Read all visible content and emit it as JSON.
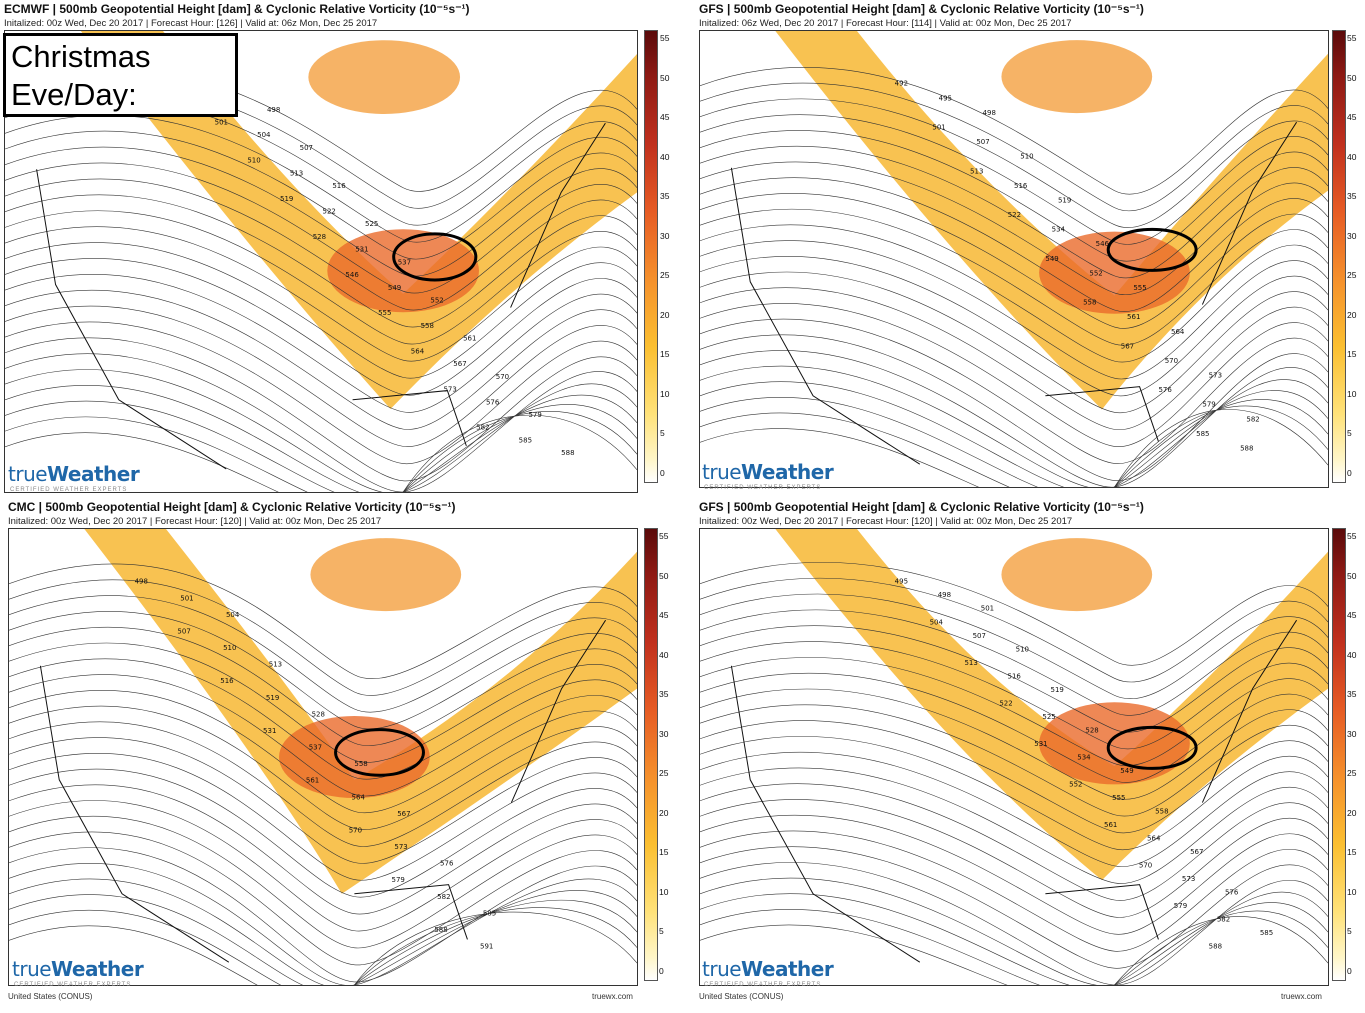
{
  "overlay": {
    "line1": "Christmas",
    "line2": "Eve/Day:"
  },
  "colorbar": {
    "ticks": [
      "55",
      "50",
      "45",
      "40",
      "35",
      "30",
      "25",
      "20",
      "15",
      "10",
      "5",
      "0"
    ]
  },
  "brand": {
    "logo_true": "true",
    "logo_weather": "Weather",
    "logo_tag": "CERTIFIED WEATHER EXPERTS",
    "site": "truewx.com",
    "region": "United States (CONUS)"
  },
  "panels": [
    {
      "title": "ECMWF | 500mb Geopotential Height [dam] & Cyclonic Relative Vorticity (10⁻⁵s⁻¹)",
      "subtitle": "Initalized: 00z Wed, Dec 20 2017 | Forecast Hour: [126] | Valid at: 06z Mon, Dec 25 2017",
      "labels": [
        "492",
        "495",
        "498",
        "501",
        "504",
        "507",
        "510",
        "513",
        "516",
        "519",
        "522",
        "525",
        "528",
        "531",
        "537",
        "546",
        "549",
        "552",
        "555",
        "558",
        "561",
        "564",
        "567",
        "570",
        "573",
        "576",
        "579",
        "582",
        "585",
        "588"
      ]
    },
    {
      "title": "GFS | 500mb Geopotential Height [dam] & Cyclonic Relative Vorticity (10⁻⁵s⁻¹)",
      "subtitle": "Initalized: 06z Wed, Dec 20 2017 | Forecast Hour: [114] | Valid at: 00z Mon, Dec 25 2017",
      "labels": [
        "492",
        "495",
        "498",
        "501",
        "507",
        "510",
        "513",
        "516",
        "519",
        "522",
        "534",
        "546",
        "549",
        "552",
        "555",
        "558",
        "561",
        "564",
        "567",
        "570",
        "573",
        "576",
        "579",
        "582",
        "585",
        "588"
      ]
    },
    {
      "title": "CMC | 500mb Geopotential Height [dam] & Cyclonic Relative Vorticity (10⁻⁵s⁻¹)",
      "subtitle": "Initalized: 00z Wed, Dec 20 2017 | Forecast Hour: [120] | Valid at: 00z Mon, Dec 25 2017",
      "labels": [
        "498",
        "501",
        "504",
        "507",
        "510",
        "513",
        "516",
        "519",
        "528",
        "531",
        "537",
        "558",
        "561",
        "564",
        "567",
        "570",
        "573",
        "576",
        "579",
        "582",
        "585",
        "588",
        "591"
      ]
    },
    {
      "title": "GFS | 500mb Geopotential Height [dam] & Cyclonic Relative Vorticity (10⁻⁵s⁻¹)",
      "subtitle": "Initalized: 00z Wed, Dec 20 2017 | Forecast Hour: [120] | Valid at: 00z Mon, Dec 25 2017",
      "labels": [
        "495",
        "498",
        "501",
        "504",
        "507",
        "510",
        "513",
        "516",
        "519",
        "522",
        "525",
        "528",
        "531",
        "534",
        "549",
        "552",
        "555",
        "558",
        "561",
        "564",
        "567",
        "570",
        "573",
        "576",
        "579",
        "582",
        "585",
        "588"
      ]
    }
  ]
}
